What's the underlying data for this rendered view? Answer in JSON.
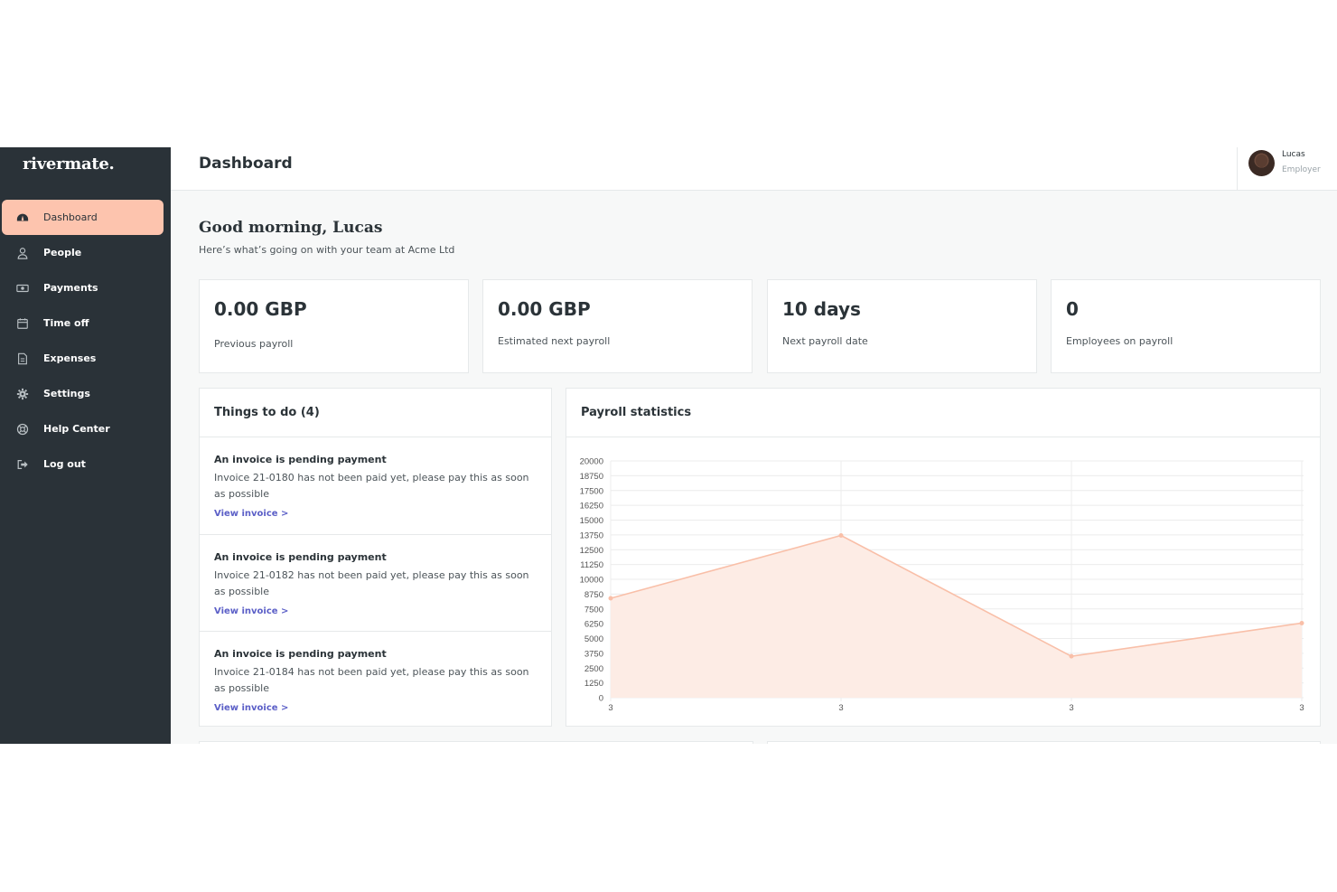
{
  "brand": {
    "logo_text": "rivermate."
  },
  "sidebar": {
    "items": [
      {
        "label": "Dashboard",
        "icon": "dashboard-icon",
        "active": true
      },
      {
        "label": "People",
        "icon": "person-icon",
        "active": false
      },
      {
        "label": "Payments",
        "icon": "money-icon",
        "active": false
      },
      {
        "label": "Time off",
        "icon": "calendar-icon",
        "active": false
      },
      {
        "label": "Expenses",
        "icon": "document-icon",
        "active": false
      },
      {
        "label": "Settings",
        "icon": "gear-icon",
        "active": false
      },
      {
        "label": "Help Center",
        "icon": "lifebuoy-icon",
        "active": false
      },
      {
        "label": "Log out",
        "icon": "logout-icon",
        "active": false
      }
    ]
  },
  "header": {
    "title": "Dashboard",
    "user": {
      "name": "Lucas",
      "role": "Employer"
    }
  },
  "welcome": {
    "greeting": "Good morning, Lucas",
    "subtitle": "Here’s what’s going on with your team at Acme Ltd"
  },
  "stats": [
    {
      "value": "0.00 GBP",
      "label": "Previous payroll"
    },
    {
      "value": "0.00 GBP",
      "label": "Estimated next payroll"
    },
    {
      "value": "10 days",
      "label": "Next payroll date"
    },
    {
      "value": "0",
      "label": "Employees on payroll"
    }
  ],
  "todo": {
    "title": "Things to do (4)",
    "items": [
      {
        "title": "An invoice is pending payment",
        "description": "Invoice 21-0180 has not been paid yet, please pay this as soon as possible",
        "link": "View invoice >"
      },
      {
        "title": "An invoice is pending payment",
        "description": "Invoice 21-0182 has not been paid yet, please pay this as soon as possible",
        "link": "View invoice >"
      },
      {
        "title": "An invoice is pending payment",
        "description": "Invoice 21-0184 has not been paid yet, please pay this as soon as possible",
        "link": "View invoice >"
      }
    ]
  },
  "payroll_panel": {
    "title": "Payroll statistics"
  },
  "colors": {
    "sidebar_bg": "#2a3238",
    "accent": "#fdc4ae",
    "chart_line": "#f9bfa8",
    "chart_fill": "#fdece5",
    "link": "#5b5fc7"
  },
  "chart_data": {
    "type": "area",
    "title": "",
    "xlabel": "",
    "ylabel": "",
    "x": [
      "3",
      "3",
      "3",
      "3"
    ],
    "series": [
      {
        "values": [
          8400,
          13700,
          3500,
          6300
        ]
      }
    ],
    "yticks": [
      0,
      1250,
      2500,
      3750,
      5000,
      6250,
      7500,
      8750,
      10000,
      11250,
      12500,
      13750,
      15000,
      16250,
      17500,
      18750,
      20000
    ],
    "ylim": [
      0,
      20000
    ],
    "grid": true
  }
}
